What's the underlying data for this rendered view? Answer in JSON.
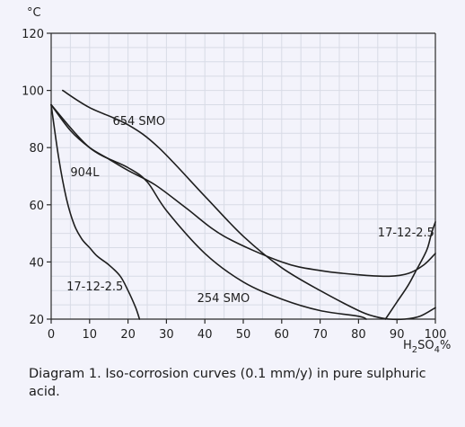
{
  "chart_data": {
    "type": "line",
    "title": "",
    "xlabel": "H2SO4%",
    "ylabel": "°C",
    "xlim": [
      0,
      100
    ],
    "ylim": [
      20,
      120
    ],
    "x_ticks": [
      0,
      10,
      20,
      30,
      40,
      50,
      60,
      70,
      80,
      90,
      100
    ],
    "y_ticks": [
      20,
      40,
      60,
      80,
      100,
      120
    ],
    "grid": true,
    "series": [
      {
        "name": "654 SMO",
        "x": [
          3,
          10,
          20,
          28,
          40,
          50,
          60,
          70,
          80,
          84,
          88,
          92,
          96,
          100
        ],
        "y": [
          100,
          94,
          88,
          80,
          63,
          49,
          38,
          30,
          23,
          21,
          20,
          20,
          21,
          24
        ]
      },
      {
        "name": "904L",
        "x": [
          0,
          5,
          10,
          15,
          20,
          27,
          35,
          45,
          60,
          70,
          80,
          88,
          93,
          97,
          100
        ],
        "y": [
          95,
          86,
          80,
          76,
          72,
          67,
          59,
          49,
          40,
          37,
          35.5,
          35,
          36,
          39,
          43
        ]
      },
      {
        "name": "17-12-2.5",
        "x": [
          0,
          2,
          4,
          6,
          8,
          10,
          12,
          15,
          18,
          20,
          22,
          23
        ],
        "y": [
          95,
          76,
          62,
          53,
          48,
          45,
          42,
          39,
          35,
          30,
          24,
          20
        ]
      },
      {
        "name": "17-12-2.5",
        "x": [
          87,
          90,
          93,
          95,
          97,
          98,
          99,
          100
        ],
        "y": [
          20,
          26,
          32,
          37,
          42,
          45,
          50,
          54
        ]
      },
      {
        "name": "254 SMO",
        "x": [
          0,
          10,
          20,
          25,
          30,
          40,
          50,
          60,
          70,
          80,
          82
        ],
        "y": [
          95,
          80,
          73,
          68,
          58,
          43,
          33,
          27,
          23,
          21,
          20
        ]
      }
    ]
  },
  "axis_units": {
    "y": "°C",
    "x_prefix": "H",
    "x_sub1": "2",
    "x_mid": "SO",
    "x_sub2": "4",
    "x_suffix": "%"
  },
  "caption": {
    "number": "Diagram 1.",
    "text": "Iso-corrosion curves (0.1 mm/y) in pure sulphuric acid."
  }
}
